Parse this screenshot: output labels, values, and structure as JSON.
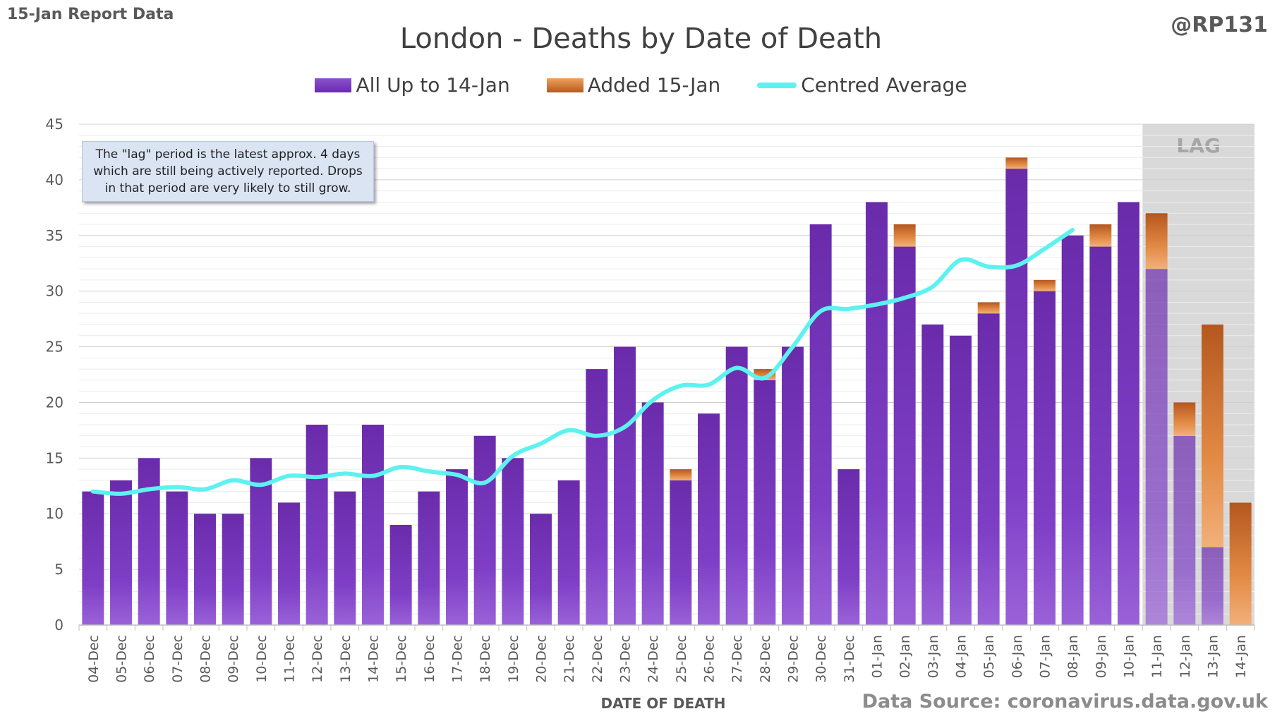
{
  "header": {
    "report_label": "15-Jan Report Data",
    "handle": "@RP131"
  },
  "footer": {
    "source": "Data Source: coronavirus.data.gov.uk"
  },
  "annotation": {
    "note": "The \"lag\" period is the latest approx. 4 days which are still being actively reported.  Drops in that period are very likely to still grow.",
    "lag_label": "LAG"
  },
  "colors": {
    "main": "#7a3cc0",
    "added": "#d8772e",
    "average": "#5df2f0",
    "lag_shade": "#d9d9d9",
    "grid": "#d9d9d9",
    "text": "#595959"
  },
  "chart_data": {
    "type": "bar",
    "title": "London - Deaths by Date of Death",
    "xlabel": "DATE OF DEATH",
    "ylabel": "",
    "ylim": [
      0,
      45
    ],
    "yticks": [
      0,
      5,
      10,
      15,
      20,
      25,
      30,
      35,
      40,
      45
    ],
    "stacked": true,
    "grid": true,
    "legend_position": "top",
    "categories": [
      "04-Dec",
      "05-Dec",
      "06-Dec",
      "07-Dec",
      "08-Dec",
      "09-Dec",
      "10-Dec",
      "11-Dec",
      "12-Dec",
      "13-Dec",
      "14-Dec",
      "15-Dec",
      "16-Dec",
      "17-Dec",
      "18-Dec",
      "19-Dec",
      "20-Dec",
      "21-Dec",
      "22-Dec",
      "23-Dec",
      "24-Dec",
      "25-Dec",
      "26-Dec",
      "27-Dec",
      "28-Dec",
      "29-Dec",
      "30-Dec",
      "31-Dec",
      "01-Jan",
      "02-Jan",
      "03-Jan",
      "04-Jan",
      "05-Jan",
      "06-Jan",
      "07-Jan",
      "08-Jan",
      "09-Jan",
      "10-Jan",
      "11-Jan",
      "12-Jan",
      "13-Jan",
      "14-Jan"
    ],
    "lag_categories": [
      "11-Jan",
      "12-Jan",
      "13-Jan",
      "14-Jan"
    ],
    "series": [
      {
        "name": "All Up to 14-Jan",
        "kind": "bar",
        "values": [
          12,
          13,
          15,
          12,
          10,
          10,
          15,
          11,
          18,
          12,
          18,
          9,
          12,
          14,
          17,
          15,
          10,
          13,
          23,
          25,
          20,
          13,
          19,
          25,
          22,
          25,
          36,
          14,
          38,
          34,
          27,
          26,
          28,
          41,
          30,
          35,
          34,
          38,
          32,
          17,
          7,
          0
        ]
      },
      {
        "name": "Added 15-Jan",
        "kind": "bar",
        "values": [
          0,
          0,
          0,
          0,
          0,
          0,
          0,
          0,
          0,
          0,
          0,
          0,
          0,
          0,
          0,
          0,
          0,
          0,
          0,
          0,
          0,
          1,
          0,
          0,
          1,
          0,
          0,
          0,
          0,
          2,
          0,
          0,
          1,
          1,
          1,
          0,
          2,
          0,
          5,
          3,
          20,
          11
        ]
      },
      {
        "name": "Centred Average",
        "kind": "line",
        "values": [
          12,
          11.8,
          12.2,
          12.4,
          12.2,
          13,
          12.6,
          13.4,
          13.3,
          13.6,
          13.4,
          14.2,
          13.8,
          13.5,
          12.8,
          15.2,
          16.3,
          17.5,
          17,
          17.8,
          20.2,
          21.5,
          21.6,
          23.1,
          22.2,
          25,
          28.2,
          28.4,
          28.8,
          29.4,
          30.4,
          32.8,
          32.2,
          32.3,
          33.8,
          35.5,
          null,
          null,
          null,
          null,
          null,
          null
        ]
      }
    ]
  }
}
